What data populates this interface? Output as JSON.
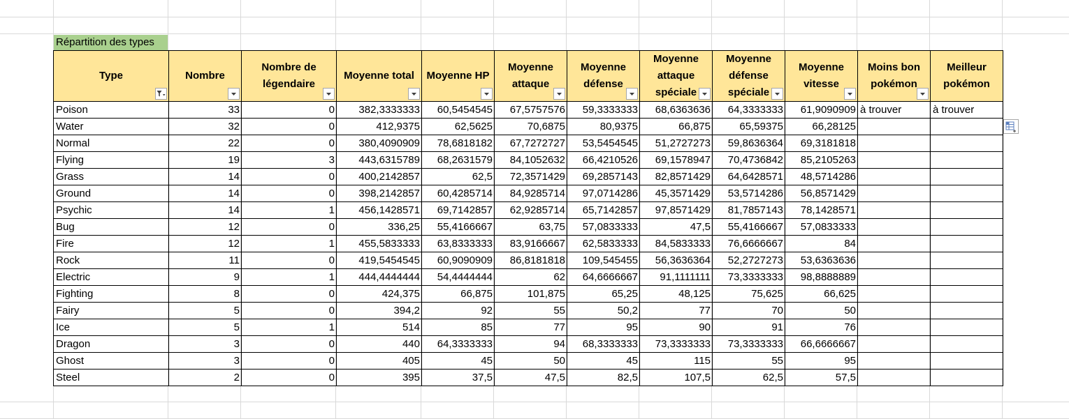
{
  "sheet": {
    "title": "Répartition des types",
    "headers": [
      {
        "label": "Type",
        "filter": "active"
      },
      {
        "label": "Nombre",
        "filter": "dropdown"
      },
      {
        "label": "Nombre de légendaire",
        "filter": "dropdown"
      },
      {
        "label": "Moyenne total",
        "filter": "dropdown"
      },
      {
        "label": "Moyenne HP",
        "filter": "dropdown"
      },
      {
        "label": "Moyenne attaque",
        "filter": "dropdown"
      },
      {
        "label": "Moyenne défense",
        "filter": "dropdown"
      },
      {
        "label": "Moyenne attaque spéciale",
        "filter": "dropdown"
      },
      {
        "label": "Moyenne défense spéciale",
        "filter": "dropdown"
      },
      {
        "label": "Moyenne vitesse",
        "filter": "dropdown"
      },
      {
        "label": "Moins bon pokémon",
        "filter": "dropdown"
      },
      {
        "label": "Meilleur pokémon",
        "filter": "none"
      }
    ],
    "rows": [
      [
        "Poison",
        "33",
        "0",
        "382,3333333",
        "60,5454545",
        "67,5757576",
        "59,3333333",
        "68,6363636",
        "64,3333333",
        "61,9090909",
        "à trouver",
        "à trouver"
      ],
      [
        "Water",
        "32",
        "0",
        "412,9375",
        "62,5625",
        "70,6875",
        "80,9375",
        "66,875",
        "65,59375",
        "66,28125",
        "",
        ""
      ],
      [
        "Normal",
        "22",
        "0",
        "380,4090909",
        "78,6818182",
        "67,7272727",
        "53,5454545",
        "51,2727273",
        "59,8636364",
        "69,3181818",
        "",
        ""
      ],
      [
        "Flying",
        "19",
        "3",
        "443,6315789",
        "68,2631579",
        "84,1052632",
        "66,4210526",
        "69,1578947",
        "70,4736842",
        "85,2105263",
        "",
        ""
      ],
      [
        "Grass",
        "14",
        "0",
        "400,2142857",
        "62,5",
        "72,3571429",
        "69,2857143",
        "82,8571429",
        "64,6428571",
        "48,5714286",
        "",
        ""
      ],
      [
        "Ground",
        "14",
        "0",
        "398,2142857",
        "60,4285714",
        "84,9285714",
        "97,0714286",
        "45,3571429",
        "53,5714286",
        "56,8571429",
        "",
        ""
      ],
      [
        "Psychic",
        "14",
        "1",
        "456,1428571",
        "69,7142857",
        "62,9285714",
        "65,7142857",
        "97,8571429",
        "81,7857143",
        "78,1428571",
        "",
        ""
      ],
      [
        "Bug",
        "12",
        "0",
        "336,25",
        "55,4166667",
        "63,75",
        "57,0833333",
        "47,5",
        "55,4166667",
        "57,0833333",
        "",
        ""
      ],
      [
        "Fire",
        "12",
        "1",
        "455,5833333",
        "63,8333333",
        "83,9166667",
        "62,5833333",
        "84,5833333",
        "76,6666667",
        "84",
        "",
        ""
      ],
      [
        "Rock",
        "11",
        "0",
        "419,5454545",
        "60,9090909",
        "86,8181818",
        "109,545455",
        "56,3636364",
        "52,2727273",
        "53,6363636",
        "",
        ""
      ],
      [
        "Electric",
        "9",
        "1",
        "444,4444444",
        "54,4444444",
        "62",
        "64,6666667",
        "91,1111111",
        "73,3333333",
        "98,8888889",
        "",
        ""
      ],
      [
        "Fighting",
        "8",
        "0",
        "424,375",
        "66,875",
        "101,875",
        "65,25",
        "48,125",
        "75,625",
        "66,625",
        "",
        ""
      ],
      [
        "Fairy",
        "5",
        "0",
        "394,2",
        "92",
        "55",
        "50,2",
        "77",
        "70",
        "50",
        "",
        ""
      ],
      [
        "Ice",
        "5",
        "1",
        "514",
        "85",
        "77",
        "95",
        "90",
        "91",
        "76",
        "",
        ""
      ],
      [
        "Dragon",
        "3",
        "0",
        "440",
        "64,3333333",
        "94",
        "68,3333333",
        "73,3333333",
        "73,3333333",
        "66,6666667",
        "",
        ""
      ],
      [
        "Ghost",
        "3",
        "0",
        "405",
        "45",
        "50",
        "45",
        "115",
        "55",
        "95",
        "",
        ""
      ],
      [
        "Steel",
        "2",
        "0",
        "395",
        "37,5",
        "47,5",
        "82,5",
        "107,5",
        "62,5",
        "57,5",
        "",
        ""
      ]
    ]
  },
  "icons": {
    "filter_dropdown": "chevron-down-icon",
    "filter_active": "filter-funnel-icon",
    "quick_analysis": "quick-analysis-icon"
  },
  "colors": {
    "title_fill": "#a9d08e",
    "header_fill": "#ffe699",
    "gridline": "#d9d9d9",
    "border": "#000000"
  }
}
